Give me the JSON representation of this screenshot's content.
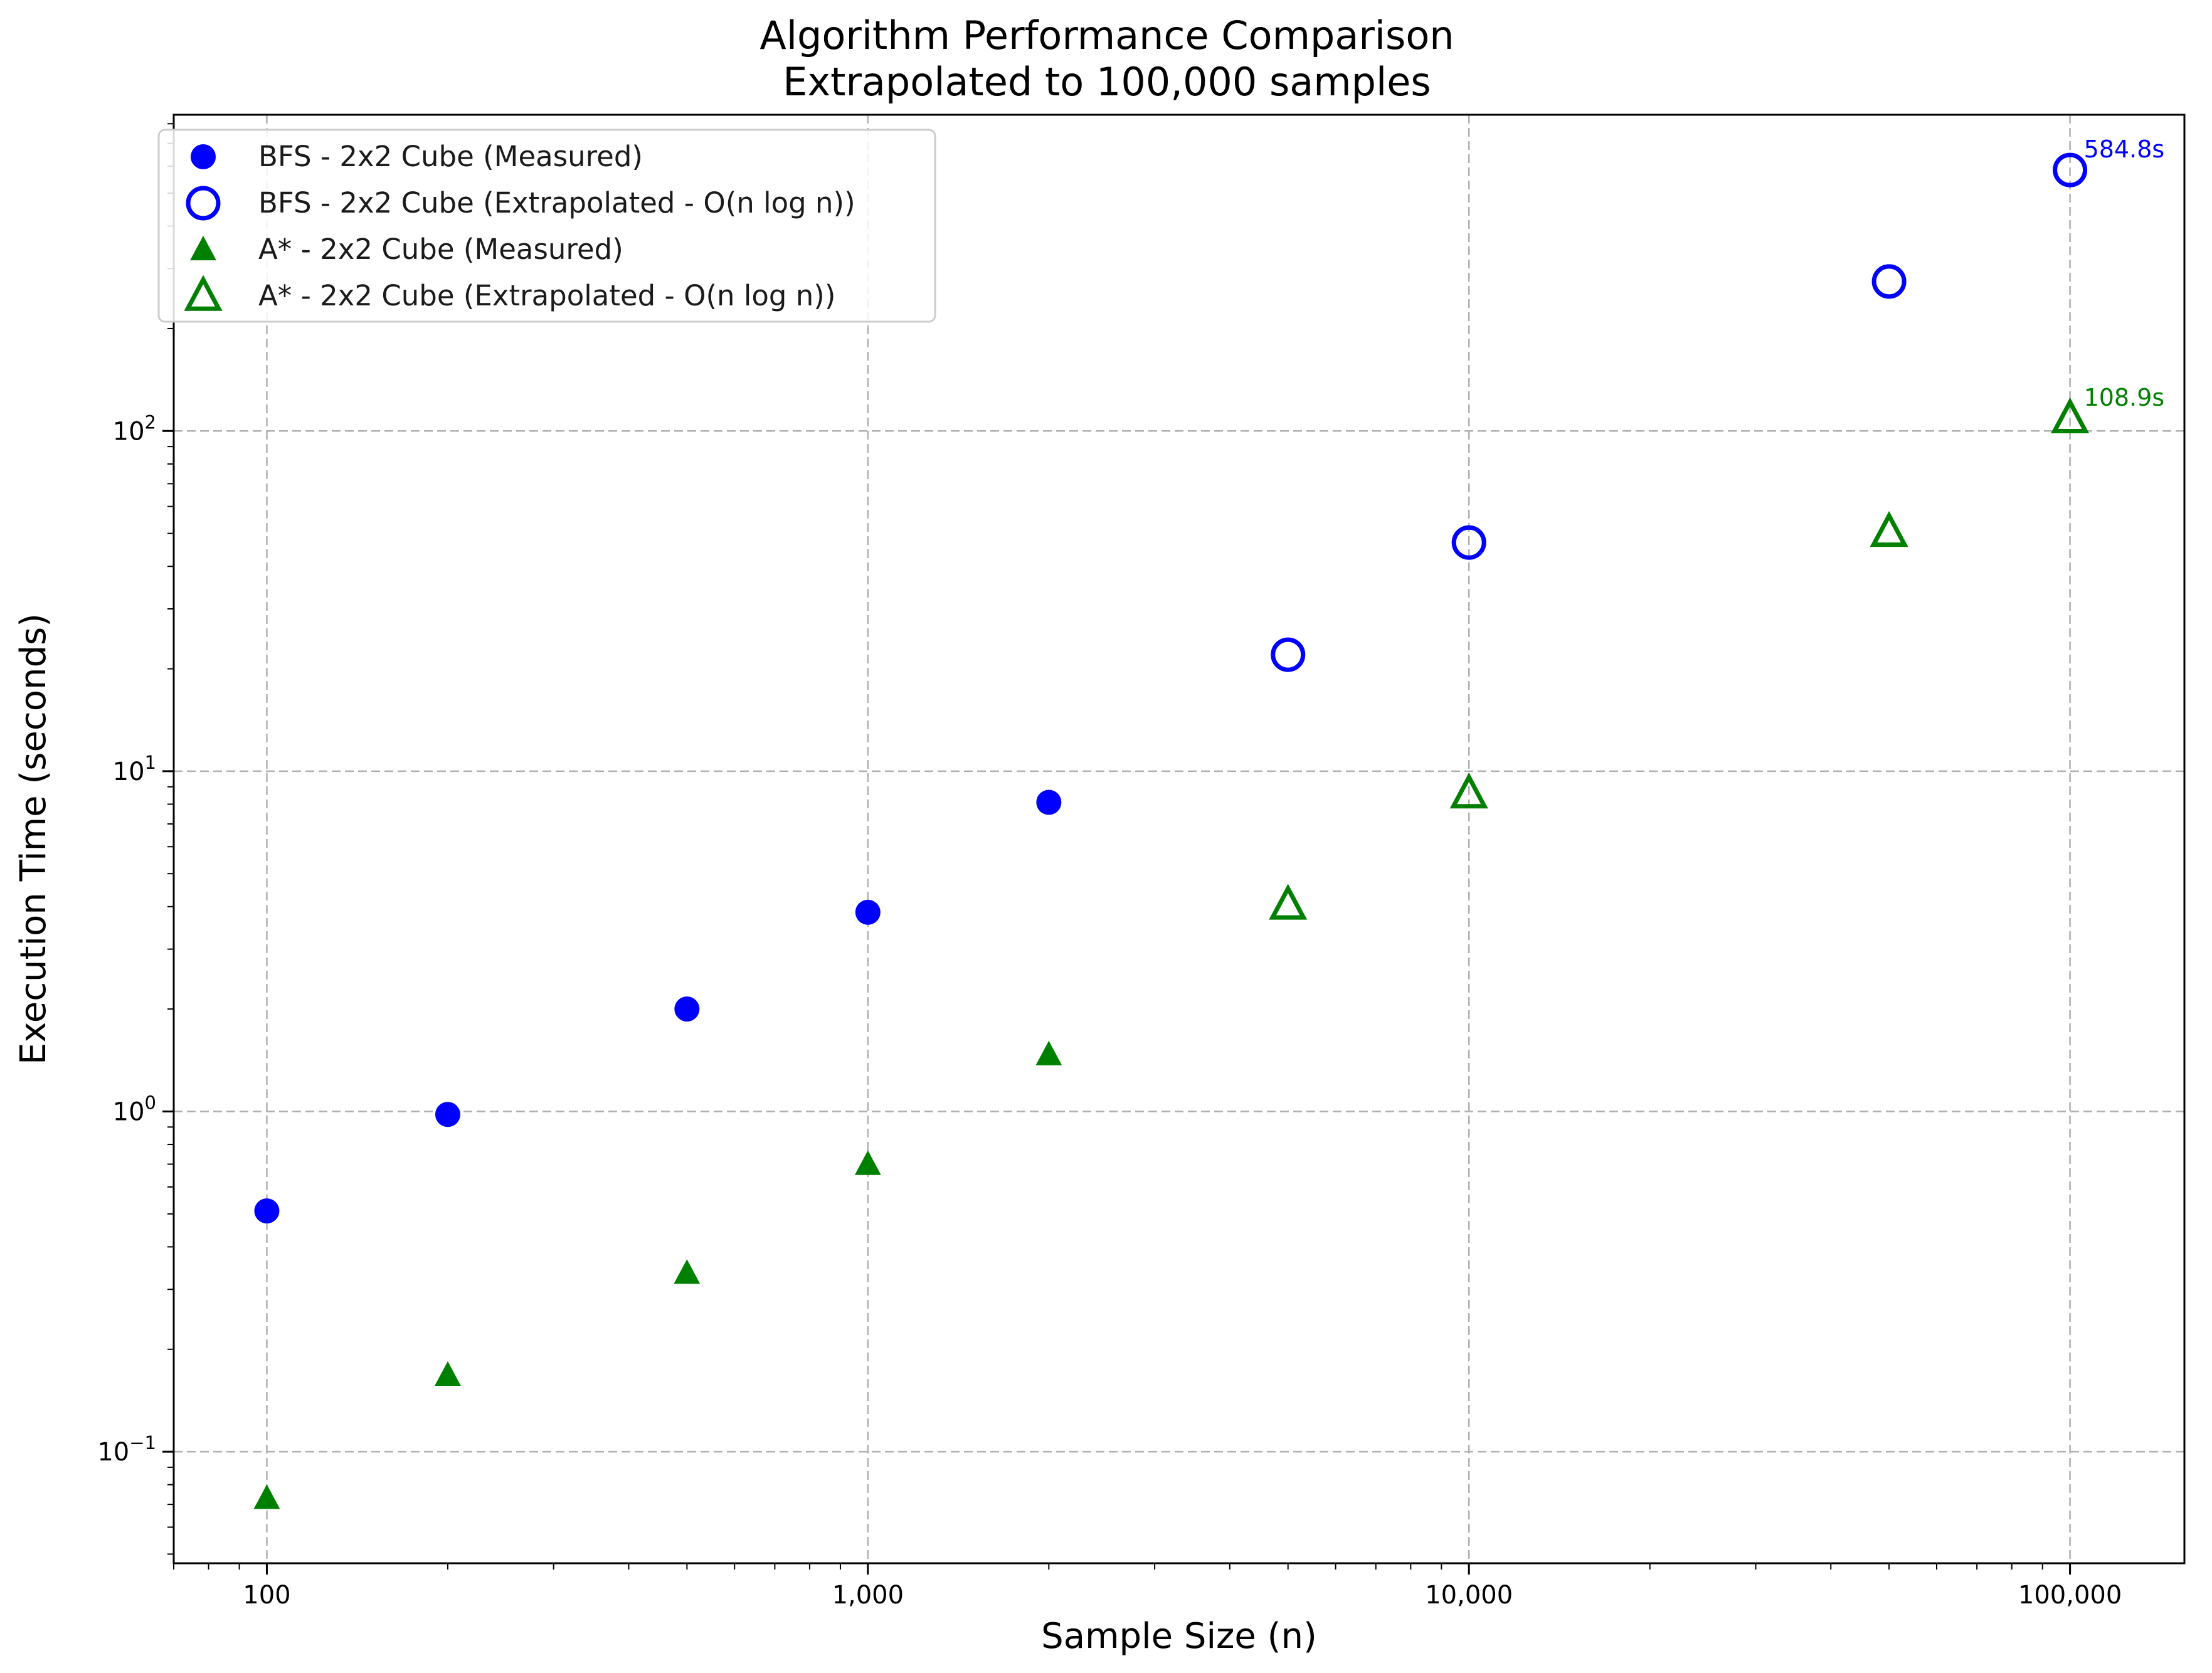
{
  "chart_data": {
    "type": "scatter",
    "title": "Algorithm Performance Comparison",
    "subtitle": "Extrapolated to 100,000 samples",
    "xlabel": "Sample Size (n)",
    "ylabel": "Execution Time (seconds)",
    "x_scale": "log",
    "y_scale": "log",
    "xlim": [
      70,
      155000
    ],
    "ylim": [
      0.047,
      850
    ],
    "x_ticks": [
      {
        "value": 100,
        "label": "100"
      },
      {
        "value": 1000,
        "label": "1,000"
      },
      {
        "value": 10000,
        "label": "10,000"
      },
      {
        "value": 100000,
        "label": "100,000"
      }
    ],
    "y_ticks": [
      {
        "value": 0.1,
        "base": "10",
        "exp": "−1"
      },
      {
        "value": 1,
        "base": "10",
        "exp": "0"
      },
      {
        "value": 10,
        "base": "10",
        "exp": "1"
      },
      {
        "value": 100,
        "base": "10",
        "exp": "2"
      }
    ],
    "grid": true,
    "legend_position": "top-left",
    "series": [
      {
        "name": "BFS - 2x2 Cube (Measured)",
        "marker": "circle",
        "filled": true,
        "color": "#0000ff",
        "x": [
          100,
          200,
          500,
          1000,
          2000
        ],
        "y": [
          0.51,
          0.98,
          2.0,
          3.85,
          8.1
        ]
      },
      {
        "name": "BFS - 2x2 Cube (Extrapolated - O(n log n))",
        "marker": "circle",
        "filled": false,
        "color": "#0000ff",
        "x": [
          5000,
          10000,
          50000,
          100000
        ],
        "y": [
          22.0,
          47.0,
          275,
          584.8
        ]
      },
      {
        "name": "A* - 2x2 Cube (Measured)",
        "marker": "triangle",
        "filled": true,
        "color": "#008000",
        "x": [
          100,
          200,
          500,
          1000,
          2000
        ],
        "y": [
          0.073,
          0.168,
          0.335,
          0.7,
          1.47
        ]
      },
      {
        "name": "A* - 2x2 Cube (Extrapolated - O(n log n))",
        "marker": "triangle",
        "filled": false,
        "color": "#008000",
        "x": [
          5000,
          10000,
          50000,
          100000
        ],
        "y": [
          4.05,
          8.6,
          50.5,
          108.9
        ]
      }
    ],
    "annotations": [
      {
        "text": "584.8s",
        "x": 100000,
        "y": 584.8,
        "color": "#0000ff"
      },
      {
        "text": "108.9s",
        "x": 100000,
        "y": 108.9,
        "color": "#008000"
      }
    ]
  }
}
